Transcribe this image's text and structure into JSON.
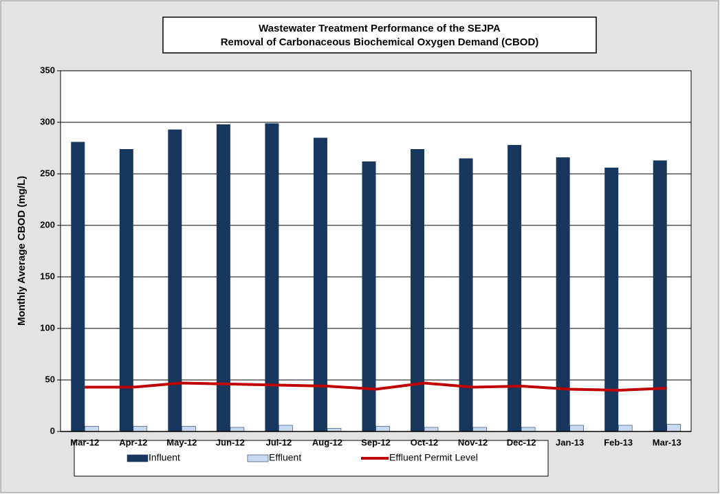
{
  "chart_data": {
    "type": "bar",
    "title": "Wastewater Treatment Performance of the SEJPA",
    "subtitle": "Removal of Carbonaceous Biochemical Oxygen Demand (CBOD)",
    "y_label": "Monthly Average CBOD (mg/L)",
    "categories": [
      "Mar-12",
      "Apr-12",
      "May-12",
      "Jun-12",
      "Jul-12",
      "Aug-12",
      "Sep-12",
      "Oct-12",
      "Nov-12",
      "Dec-12",
      "Jan-13",
      "Feb-13",
      "Mar-13"
    ],
    "series": [
      {
        "name": "Influent",
        "type": "bar",
        "color": "#17375e",
        "values": [
          281,
          274,
          293,
          298,
          299,
          285,
          262,
          274,
          265,
          278,
          266,
          256,
          263
        ]
      },
      {
        "name": "Effluent",
        "type": "bar",
        "color": "#c6d9f1",
        "values": [
          5,
          5,
          5,
          4,
          6,
          3,
          5,
          4,
          4,
          4,
          6,
          6,
          7
        ]
      },
      {
        "name": "Effluent Permit Level",
        "type": "line",
        "color": "#c00000",
        "values": [
          43,
          43,
          47,
          46,
          45,
          44,
          41,
          47,
          43,
          44,
          41,
          40,
          42
        ]
      }
    ],
    "ylim": [
      0,
      350
    ],
    "yticks": [
      0,
      50,
      100,
      150,
      200,
      250,
      300,
      350
    ],
    "grid": true,
    "legend": "bottom"
  }
}
